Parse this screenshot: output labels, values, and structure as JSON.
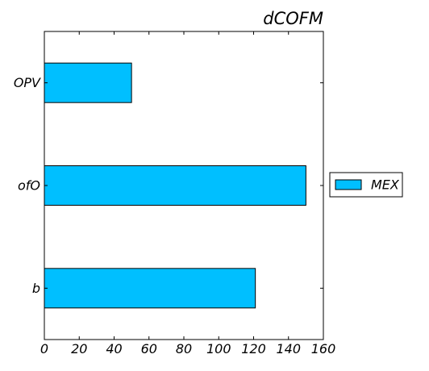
{
  "chart_data": {
    "type": "bar",
    "orientation": "horizontal",
    "title": "dCOFM",
    "categories": [
      "OPV",
      "ofO",
      "b"
    ],
    "series": [
      {
        "name": "MEX",
        "values": [
          50,
          150,
          121
        ],
        "color": "#00bfff"
      }
    ],
    "xlim": [
      0,
      160
    ],
    "xticks": [
      "0",
      "20",
      "40",
      "60",
      "80",
      "100",
      "120",
      "140",
      "160"
    ],
    "xlabel": "",
    "ylabel": "",
    "grid": false,
    "legend_position": "right, outside plot"
  }
}
